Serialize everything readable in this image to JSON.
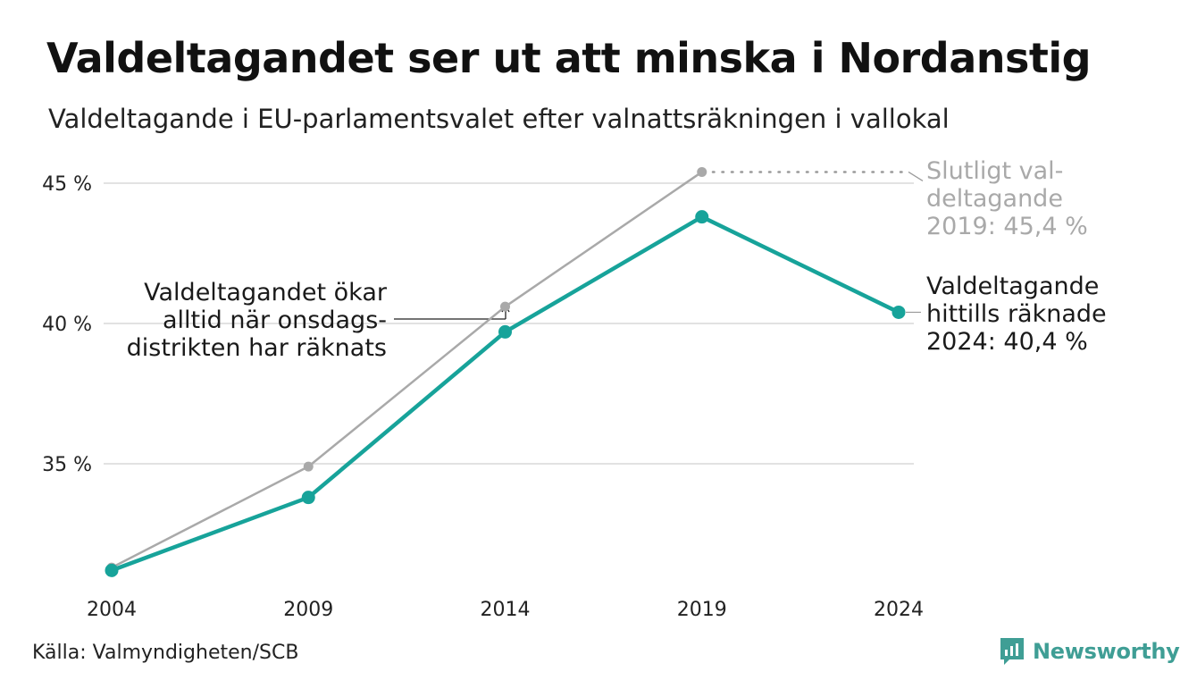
{
  "title": "Valdeltagandet ser ut att minska i Nordanstig",
  "subtitle": "Valdeltagande i EU-parlamentsvalet efter valnattsräkningen i vallokal",
  "source": "Källa: Valmyndigheten/SCB",
  "brand": {
    "name": "Newsworthy",
    "icon": "newsworthy-logo-icon",
    "color": "#3f9e95"
  },
  "colors": {
    "valnatt": "#17a39a",
    "slutligt": "#a9a9a9",
    "grid": "#e2e2e2"
  },
  "chart_data": {
    "type": "line",
    "title": "Valdeltagandet ser ut att minska i Nordanstig",
    "subtitle": "Valdeltagande i EU-parlamentsvalet efter valnattsräkningen i vallokal",
    "xlabel": "",
    "ylabel": "",
    "x": [
      "2004",
      "2009",
      "2014",
      "2019",
      "2024"
    ],
    "ylim": [
      31,
      46
    ],
    "yticks": [
      35,
      40,
      45
    ],
    "ytick_labels": [
      "35 %",
      "40 %",
      "45 %"
    ],
    "grid": true,
    "legend": "none",
    "series": [
      {
        "key": "slutligt",
        "values": [
          31.3,
          34.9,
          40.6,
          45.4,
          null
        ]
      },
      {
        "key": "valnatt",
        "values": [
          31.2,
          33.8,
          39.7,
          43.8,
          40.4
        ]
      }
    ],
    "annotations": {
      "onsdag": [
        "Valdeltagandet ökar",
        "alltid när onsdags-",
        "distrikten har räknats"
      ],
      "slutligt": [
        "Slutligt val-",
        "deltagande",
        "2019: 45,4 %"
      ],
      "hittills": [
        "Valdeltagande",
        "hittills räknade",
        "2024: 40,4 %"
      ]
    }
  }
}
